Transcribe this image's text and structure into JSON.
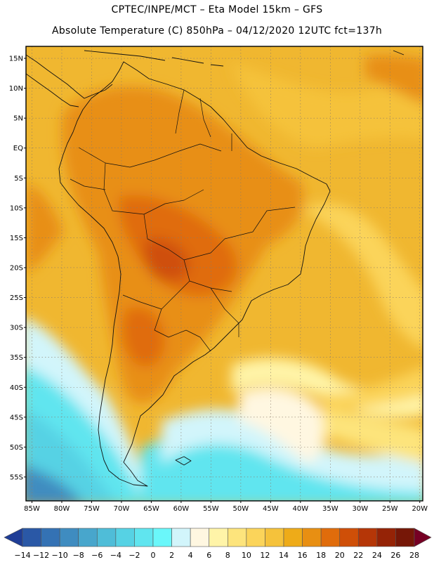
{
  "header": {
    "line1": "CPTEC/INPE/MCT –  Eta Model 15km – GFS",
    "line2": "Absolute Temperature (C) 850hPa – 04/12/2020 12UTC fct=137h"
  },
  "axes": {
    "lat_labels": [
      "15N",
      "10N",
      "5N",
      "EQ",
      "5S",
      "10S",
      "15S",
      "20S",
      "25S",
      "30S",
      "35S",
      "40S",
      "45S",
      "50S",
      "55S"
    ],
    "lon_labels": [
      "85W",
      "80W",
      "75W",
      "70W",
      "65W",
      "60W",
      "55W",
      "50W",
      "45W",
      "40W",
      "35W",
      "30W",
      "25W",
      "20W"
    ]
  },
  "colorbar": {
    "labels": [
      "-14",
      "-12",
      "-10",
      "-8",
      "-6",
      "-4",
      "-2",
      "0",
      "2",
      "4",
      "6",
      "8",
      "10",
      "12",
      "14",
      "16",
      "18",
      "20",
      "22",
      "24",
      "26",
      "28"
    ],
    "colors": [
      "#1f3d96",
      "#2a58a6",
      "#3472b4",
      "#3f8cc0",
      "#48a6cc",
      "#4fbdd8",
      "#56d2e4",
      "#60e5ef",
      "#6af7fa",
      "#d2f5fb",
      "#fff7e1",
      "#fff4a8",
      "#fde47c",
      "#fbd45a",
      "#f5c23b",
      "#eeab18",
      "#e88f12",
      "#e06c0b",
      "#cf4f08",
      "#b53607",
      "#952306",
      "#761707",
      "#760024"
    ]
  }
}
